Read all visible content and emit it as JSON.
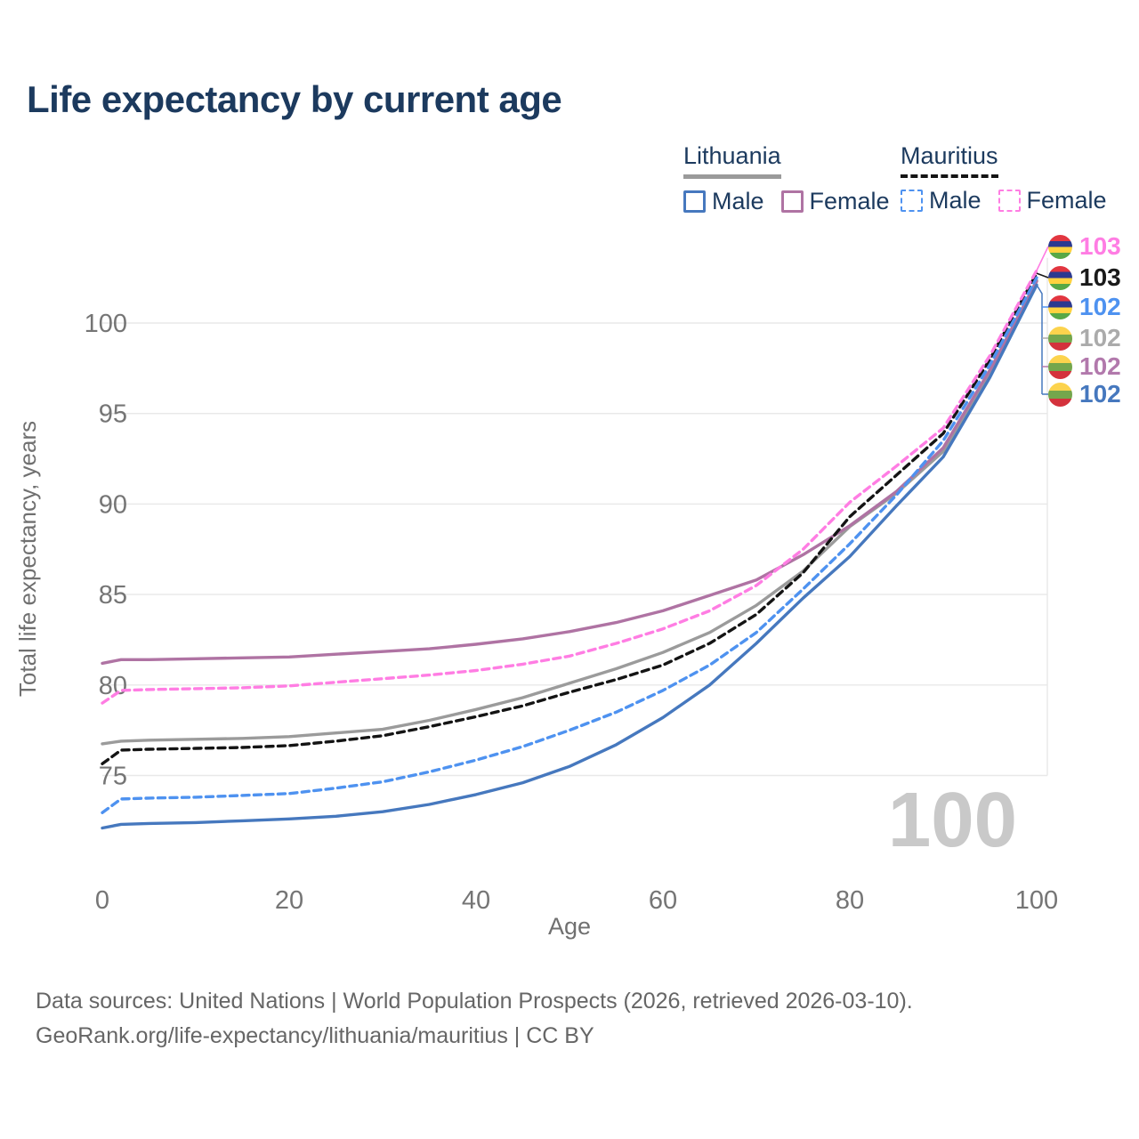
{
  "title": "Life expectancy by current age",
  "legend": {
    "groups": [
      {
        "country": "Lithuania",
        "line_style": "solid",
        "line_color": "#9a9a9a",
        "items": [
          {
            "label": "Male",
            "color": "#4678BE",
            "dashed": false
          },
          {
            "label": "Female",
            "color": "#AF73A3",
            "dashed": false
          }
        ]
      },
      {
        "country": "Mauritius",
        "line_style": "dashed",
        "line_color": "#141414",
        "items": [
          {
            "label": "Male",
            "color": "#4E92F0",
            "dashed": true
          },
          {
            "label": "Female",
            "color": "#FF7DE3",
            "dashed": true
          }
        ]
      }
    ]
  },
  "chart_data": {
    "type": "line",
    "title": "Life expectancy by current age",
    "xlabel": "Age",
    "ylabel": "Total life expectancy, years",
    "x_ticks": [
      0,
      20,
      40,
      60,
      80,
      100
    ],
    "y_ticks": [
      75,
      80,
      85,
      90,
      95,
      100
    ],
    "xlim": [
      0,
      100
    ],
    "ylim": [
      71,
      104
    ],
    "grid": "horizontal",
    "legend_position": "top-right",
    "x": [
      0,
      2,
      5,
      10,
      15,
      20,
      25,
      30,
      35,
      40,
      45,
      50,
      55,
      60,
      65,
      70,
      75,
      80,
      85,
      90,
      95,
      100
    ],
    "series": [
      {
        "name": "Lithuania Total",
        "country": "Lithuania",
        "sex": "Both",
        "color": "#9B9B9B",
        "dashed": false,
        "values": [
          76.75,
          76.9,
          76.95,
          77.0,
          77.05,
          77.15,
          77.35,
          77.55,
          78.05,
          78.65,
          79.3,
          80.1,
          80.9,
          81.8,
          82.9,
          84.4,
          86.3,
          88.75,
          90.6,
          92.9,
          97.2,
          102.35
        ]
      },
      {
        "name": "Lithuania Female",
        "country": "Lithuania",
        "sex": "Female",
        "color": "#AF73A3",
        "dashed": false,
        "values": [
          81.2,
          81.4,
          81.4,
          81.45,
          81.5,
          81.55,
          81.7,
          81.85,
          82.0,
          82.25,
          82.55,
          82.95,
          83.45,
          84.1,
          84.95,
          85.8,
          87.2,
          88.8,
          90.7,
          93.1,
          97.4,
          102.3
        ]
      },
      {
        "name": "Lithuania Male",
        "country": "Lithuania",
        "sex": "Male",
        "color": "#4678BE",
        "dashed": false,
        "values": [
          72.1,
          72.3,
          72.35,
          72.4,
          72.5,
          72.6,
          72.75,
          73.0,
          73.4,
          73.95,
          74.6,
          75.5,
          76.7,
          78.2,
          80.0,
          82.3,
          84.8,
          87.1,
          89.9,
          92.6,
          97.0,
          102.1
        ]
      },
      {
        "name": "Mauritius Total",
        "country": "Mauritius",
        "sex": "Both",
        "color": "#141414",
        "dashed": true,
        "values": [
          75.65,
          76.4,
          76.45,
          76.5,
          76.55,
          76.65,
          76.9,
          77.2,
          77.7,
          78.25,
          78.85,
          79.6,
          80.3,
          81.1,
          82.3,
          83.9,
          86.2,
          89.3,
          91.6,
          93.9,
          98.0,
          102.75
        ]
      },
      {
        "name": "Mauritius Male",
        "country": "Mauritius",
        "sex": "Male",
        "color": "#4E92F0",
        "dashed": true,
        "values": [
          72.95,
          73.7,
          73.75,
          73.8,
          73.9,
          74.0,
          74.3,
          74.65,
          75.2,
          75.85,
          76.6,
          77.5,
          78.5,
          79.7,
          81.1,
          82.9,
          85.3,
          87.8,
          90.5,
          93.5,
          97.7,
          102.5
        ]
      },
      {
        "name": "Mauritius Female",
        "country": "Mauritius",
        "sex": "Female",
        "color": "#FF7DE3",
        "dashed": true,
        "values": [
          79.0,
          79.7,
          79.75,
          79.8,
          79.85,
          79.95,
          80.15,
          80.35,
          80.55,
          80.8,
          81.15,
          81.6,
          82.3,
          83.1,
          84.1,
          85.5,
          87.5,
          90.1,
          92.1,
          94.2,
          98.2,
          102.9
        ]
      }
    ]
  },
  "end_labels": [
    {
      "value": "103",
      "color": "#FF7DE3",
      "flag": "mauritius",
      "series": "Mauritius Female"
    },
    {
      "value": "103",
      "color": "#1a1a1a",
      "flag": "mauritius",
      "series": "Mauritius Total"
    },
    {
      "value": "102",
      "color": "#4E92F0",
      "flag": "mauritius",
      "series": "Mauritius Male"
    },
    {
      "value": "102",
      "color": "#ABABAB",
      "flag": "lithuania",
      "series": "Lithuania Total"
    },
    {
      "value": "102",
      "color": "#B279AC",
      "flag": "lithuania",
      "series": "Lithuania Female"
    },
    {
      "value": "102",
      "color": "#4678BE",
      "flag": "lithuania",
      "series": "Lithuania Male"
    }
  ],
  "watermark": "100",
  "footer": {
    "line1": "Data sources: United Nations | World Population Prospects (2026, retrieved 2026-03-10).",
    "line2": "GeoRank.org/life-expectancy/lithuania/mauritius | CC BY"
  }
}
